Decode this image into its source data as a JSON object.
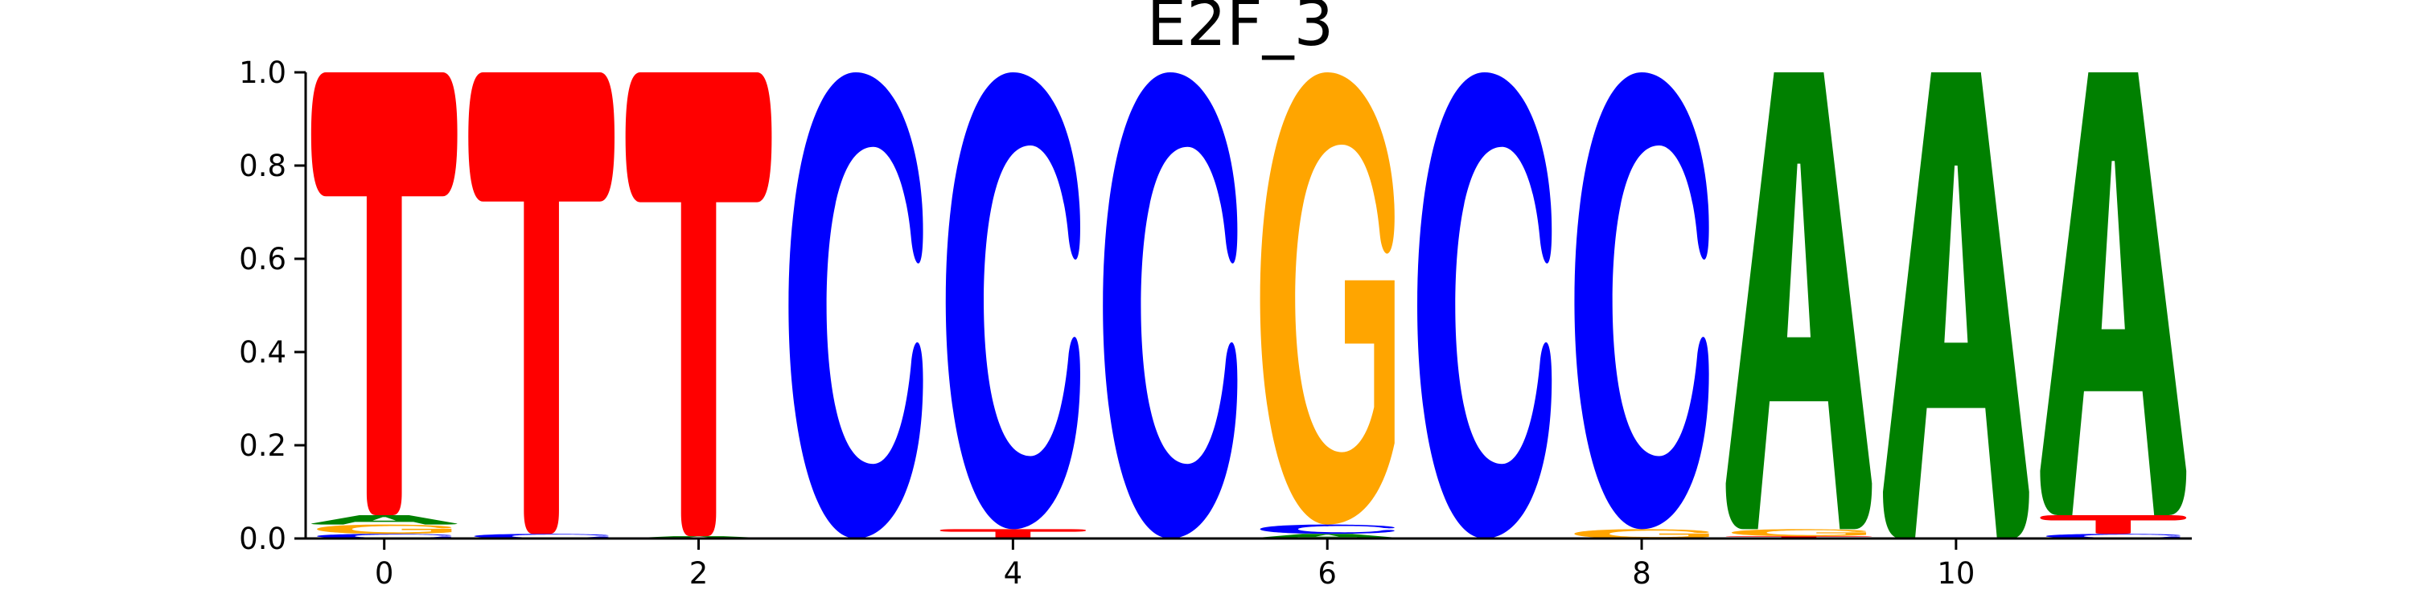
{
  "chart_data": {
    "type": "sequence-logo",
    "title": "E2F_3",
    "xlabel": "",
    "ylabel": "",
    "xlim": [
      -0.5,
      11.5
    ],
    "ylim": [
      0,
      1
    ],
    "xticks": [
      0,
      2,
      4,
      6,
      8,
      10
    ],
    "yticks": [
      0.0,
      0.2,
      0.4,
      0.6,
      0.8,
      1.0
    ],
    "ytick_labels": [
      "0.0",
      "0.2",
      "0.4",
      "0.6",
      "0.8",
      "1.0"
    ],
    "xtick_labels": [
      "0",
      "2",
      "4",
      "6",
      "8",
      "10"
    ],
    "grid": false,
    "colors": {
      "A": "#008000",
      "C": "#0000ff",
      "G": "#ffa500",
      "T": "#ff0000"
    },
    "positions": [
      {
        "position": 0,
        "stack": [
          {
            "base": "C",
            "height": 0.01
          },
          {
            "base": "G",
            "height": 0.02
          },
          {
            "base": "A",
            "height": 0.02
          },
          {
            "base": "T",
            "height": 0.95
          }
        ]
      },
      {
        "position": 1,
        "stack": [
          {
            "base": "C",
            "height": 0.01
          },
          {
            "base": "T",
            "height": 0.99
          }
        ]
      },
      {
        "position": 2,
        "stack": [
          {
            "base": "A",
            "height": 0.005
          },
          {
            "base": "T",
            "height": 0.995
          }
        ]
      },
      {
        "position": 3,
        "stack": [
          {
            "base": "C",
            "height": 1.0
          }
        ]
      },
      {
        "position": 4,
        "stack": [
          {
            "base": "T",
            "height": 0.02
          },
          {
            "base": "C",
            "height": 0.98
          }
        ]
      },
      {
        "position": 5,
        "stack": [
          {
            "base": "C",
            "height": 1.0
          }
        ]
      },
      {
        "position": 6,
        "stack": [
          {
            "base": "A",
            "height": 0.01
          },
          {
            "base": "C",
            "height": 0.02
          },
          {
            "base": "G",
            "height": 0.97
          }
        ]
      },
      {
        "position": 7,
        "stack": [
          {
            "base": "C",
            "height": 1.0
          }
        ]
      },
      {
        "position": 8,
        "stack": [
          {
            "base": "G",
            "height": 0.02
          },
          {
            "base": "C",
            "height": 0.98
          }
        ]
      },
      {
        "position": 9,
        "stack": [
          {
            "base": "T",
            "height": 0.005
          },
          {
            "base": "G",
            "height": 0.015
          },
          {
            "base": "A",
            "height": 0.98
          }
        ]
      },
      {
        "position": 10,
        "stack": [
          {
            "base": "A",
            "height": 1.0
          }
        ]
      },
      {
        "position": 11,
        "stack": [
          {
            "base": "C",
            "height": 0.01
          },
          {
            "base": "T",
            "height": 0.04
          },
          {
            "base": "A",
            "height": 0.95
          }
        ]
      }
    ]
  }
}
